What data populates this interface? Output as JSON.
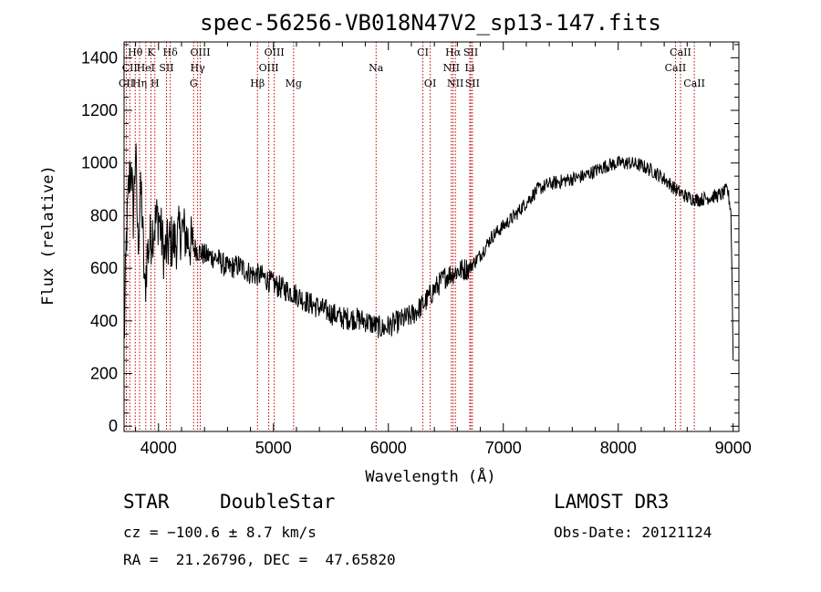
{
  "chart_data": {
    "type": "line",
    "title": "spec-56256-VB018N47V2_sp13-147.fits",
    "xlabel": "Wavelength (Å)",
    "ylabel": "Flux (relative)",
    "xlim": [
      3700,
      9050
    ],
    "ylim": [
      -20,
      1460
    ],
    "xticks": [
      4000,
      5000,
      6000,
      7000,
      8000,
      9000
    ],
    "yticks": [
      0,
      200,
      400,
      600,
      800,
      1000,
      1200,
      1400
    ],
    "series": [
      {
        "name": "spectrum",
        "x": [
          3700,
          3720,
          3740,
          3760,
          3780,
          3800,
          3820,
          3850,
          3880,
          3900,
          3950,
          4000,
          4050,
          4100,
          4150,
          4200,
          4300,
          4400,
          4500,
          4600,
          4700,
          4800,
          4900,
          5000,
          5100,
          5200,
          5300,
          5400,
          5500,
          5600,
          5700,
          5800,
          5900,
          5950,
          6000,
          6100,
          6200,
          6300,
          6400,
          6500,
          6600,
          6700,
          6800,
          6900,
          7000,
          7100,
          7200,
          7300,
          7400,
          7500,
          7600,
          7700,
          7800,
          7900,
          8000,
          8100,
          8200,
          8300,
          8400,
          8500,
          8600,
          8700,
          8800,
          8900,
          8950,
          8980,
          9000
        ],
        "y": [
          300,
          700,
          900,
          1000,
          800,
          1050,
          700,
          900,
          500,
          650,
          750,
          800,
          650,
          700,
          700,
          750,
          680,
          650,
          640,
          600,
          610,
          580,
          570,
          540,
          520,
          500,
          470,
          450,
          430,
          410,
          410,
          400,
          380,
          370,
          380,
          400,
          420,
          460,
          520,
          570,
          590,
          600,
          650,
          720,
          760,
          800,
          850,
          900,
          920,
          930,
          940,
          950,
          970,
          990,
          1000,
          1000,
          990,
          970,
          940,
          900,
          870,
          860,
          870,
          880,
          900,
          820,
          300
        ],
        "noise": 45
      }
    ],
    "emission_lines": [
      {
        "label": "Hθ",
        "wl": 3797,
        "row": 0
      },
      {
        "label": "K",
        "wl": 3934,
        "row": 0
      },
      {
        "label": "Hδ",
        "wl": 4102,
        "row": 0
      },
      {
        "label": "OIII",
        "wl": 4363,
        "row": 0
      },
      {
        "label": "OIII",
        "wl": 5007,
        "row": 0
      },
      {
        "label": "CI",
        "wl": 6300,
        "row": 0
      },
      {
        "label": "Hα",
        "wl": 6563,
        "row": 0
      },
      {
        "label": "SII",
        "wl": 6717,
        "row": 0
      },
      {
        "label": "CaII",
        "wl": 8542,
        "row": 0
      },
      {
        "label": "CII",
        "wl": 3750,
        "row": 1
      },
      {
        "label": "HeI",
        "wl": 3889,
        "row": 1
      },
      {
        "label": "SII",
        "wl": 4069,
        "row": 1
      },
      {
        "label": "Hγ",
        "wl": 4340,
        "row": 1
      },
      {
        "label": "OIII",
        "wl": 4959,
        "row": 1
      },
      {
        "label": "Na",
        "wl": 5893,
        "row": 1
      },
      {
        "label": "NII",
        "wl": 6548,
        "row": 1
      },
      {
        "label": "Li",
        "wl": 6708,
        "row": 1
      },
      {
        "label": "CaII",
        "wl": 8498,
        "row": 1
      },
      {
        "label": "CII",
        "wl": 3720,
        "row": 2
      },
      {
        "label": "Hη",
        "wl": 3835,
        "row": 2
      },
      {
        "label": "H",
        "wl": 3968,
        "row": 2
      },
      {
        "label": "G",
        "wl": 4305,
        "row": 2
      },
      {
        "label": "Hβ",
        "wl": 4861,
        "row": 2
      },
      {
        "label": "Mg",
        "wl": 5175,
        "row": 2
      },
      {
        "label": "OI",
        "wl": 6364,
        "row": 2
      },
      {
        "label": "NII",
        "wl": 6583,
        "row": 2
      },
      {
        "label": "SII",
        "wl": 6731,
        "row": 2
      },
      {
        "label": "CaII",
        "wl": 8662,
        "row": 2
      }
    ]
  },
  "info": {
    "object_class": "STAR",
    "subclass": "DoubleStar",
    "survey": "LAMOST DR3",
    "cz": "cz = −100.6 ± 8.7 km/s",
    "obs_date": "Obs-Date: 20121124",
    "coords": "RA =  21.26796, DEC =  47.65820"
  }
}
